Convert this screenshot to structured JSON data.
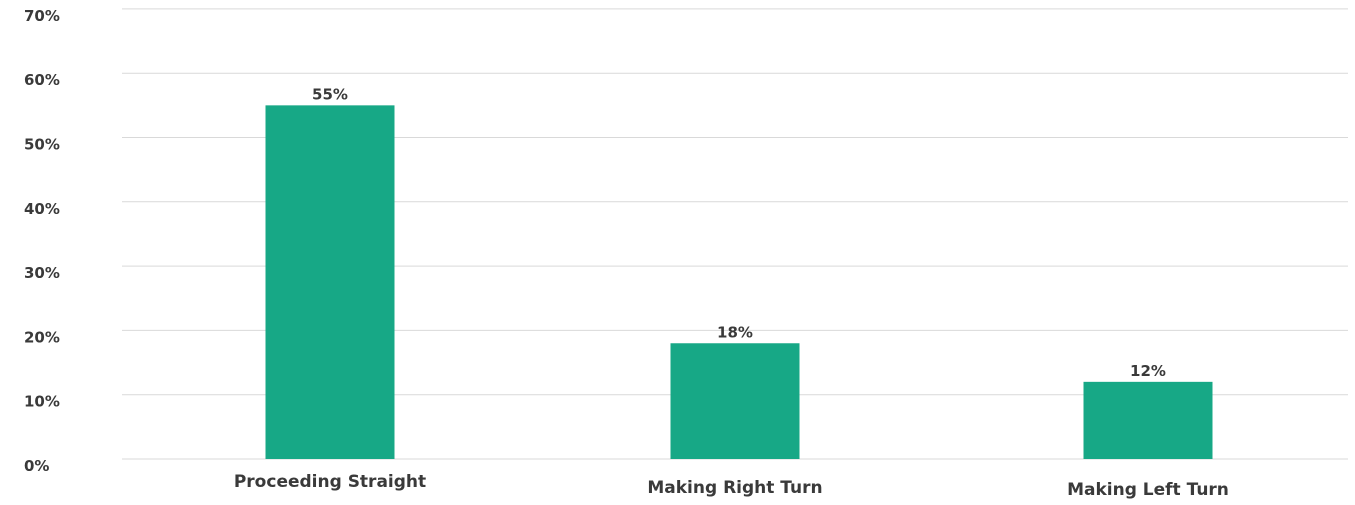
{
  "chart_data": {
    "type": "bar",
    "categories": [
      "Proceeding Straight",
      "Making Right Turn",
      "Making Left Turn"
    ],
    "values": [
      55,
      18,
      12
    ],
    "value_labels": [
      "55%",
      "18%",
      "12%"
    ],
    "y_ticks": [
      0,
      10,
      20,
      30,
      40,
      50,
      60,
      70
    ],
    "y_tick_labels": [
      "0%",
      "10%",
      "20%",
      "30%",
      "40%",
      "50%",
      "60%",
      "70%"
    ],
    "ylim": [
      0,
      70
    ],
    "grid": true,
    "legend": "none",
    "colors": {
      "bar": "#17a886",
      "grid": "#d9d9d9",
      "text": "#3a3a3a"
    }
  }
}
